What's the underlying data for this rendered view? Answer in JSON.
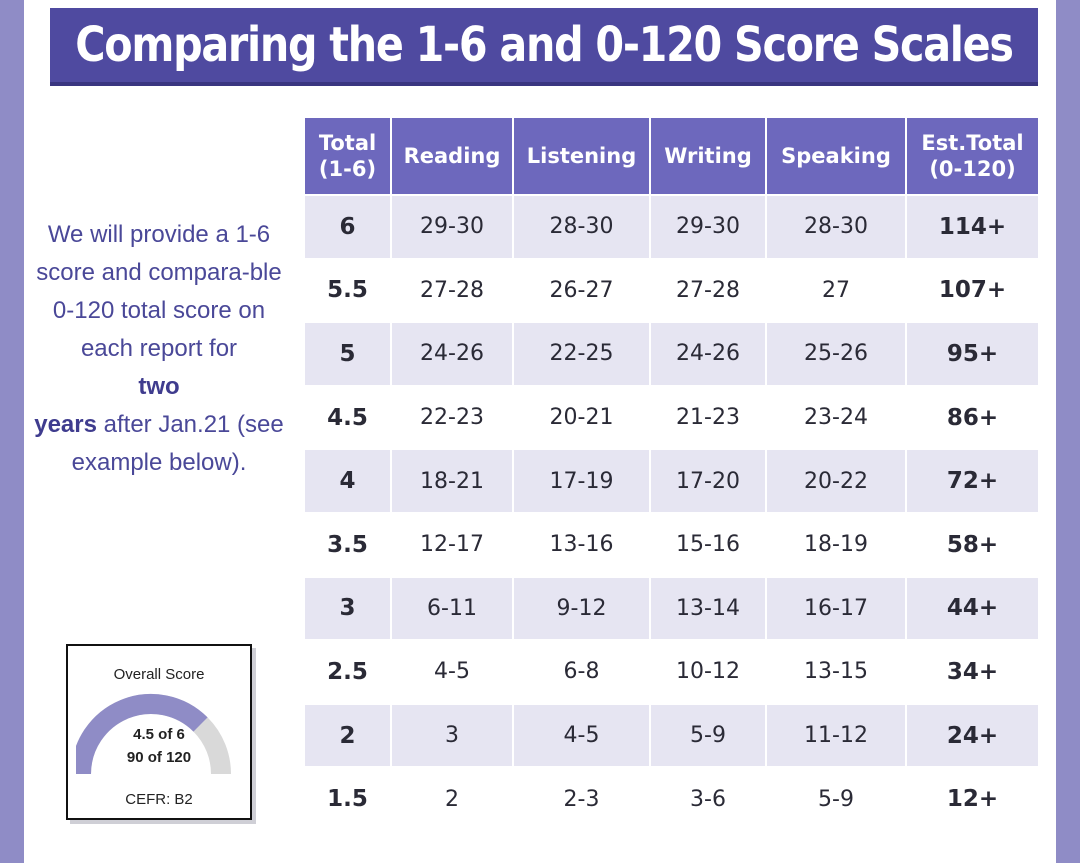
{
  "title": "Comparing the 1-6 and 0-120 Score Scales",
  "sidebar": {
    "text_1": "We will provide a 1-6 score and compara-ble 0-120 total score on each report for",
    "bold_1": "two",
    "bold_2": "years",
    "text_2": "after Jan.21 (see example below)."
  },
  "gauge": {
    "title": "Overall Score",
    "line1": "4.5 of 6",
    "line2": "90 of 120",
    "cefr": "CEFR: B2",
    "fill_fraction": 0.75,
    "fill_color": "#8f8cc6",
    "empty_color": "#d9d9d9"
  },
  "table": {
    "headers": {
      "total": "Total (1-6)",
      "reading": "Reading",
      "listening": "Listening",
      "writing": "Writing",
      "speaking": "Speaking",
      "est_total": "Est.Total (0-120)"
    },
    "rows": [
      {
        "total": "6",
        "reading": "29-30",
        "listening": "28-30",
        "writing": "29-30",
        "speaking": "28-30",
        "est": "114+"
      },
      {
        "total": "5.5",
        "reading": "27-28",
        "listening": "26-27",
        "writing": "27-28",
        "speaking": "27",
        "est": "107+"
      },
      {
        "total": "5",
        "reading": "24-26",
        "listening": "22-25",
        "writing": "24-26",
        "speaking": "25-26",
        "est": "95+"
      },
      {
        "total": "4.5",
        "reading": "22-23",
        "listening": "20-21",
        "writing": "21-23",
        "speaking": "23-24",
        "est": "86+"
      },
      {
        "total": "4",
        "reading": "18-21",
        "listening": "17-19",
        "writing": "17-20",
        "speaking": "20-22",
        "est": "72+"
      },
      {
        "total": "3.5",
        "reading": "12-17",
        "listening": "13-16",
        "writing": "15-16",
        "speaking": "18-19",
        "est": "58+"
      },
      {
        "total": "3",
        "reading": "6-11",
        "listening": "9-12",
        "writing": "13-14",
        "speaking": "16-17",
        "est": "44+"
      },
      {
        "total": "2.5",
        "reading": "4-5",
        "listening": "6-8",
        "writing": "10-12",
        "speaking": "13-15",
        "est": "34+"
      },
      {
        "total": "2",
        "reading": "3",
        "listening": "4-5",
        "writing": "5-9",
        "speaking": "11-12",
        "est": "24+"
      },
      {
        "total": "1.5",
        "reading": "2",
        "listening": "2-3",
        "writing": "3-6",
        "speaking": "5-9",
        "est": "12+"
      }
    ]
  }
}
